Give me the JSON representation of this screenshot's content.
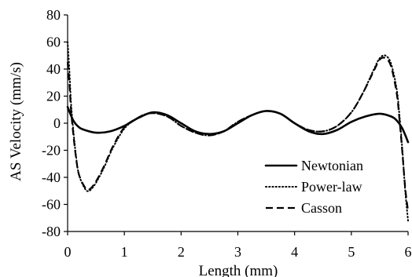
{
  "chart_data": {
    "type": "line",
    "xlabel": "Length (mm)",
    "ylabel": "AS Velocity (mm/s)",
    "xlim": [
      0,
      6
    ],
    "ylim": [
      -80,
      80
    ],
    "x_ticks": [
      0,
      1,
      2,
      3,
      4,
      5,
      6
    ],
    "y_ticks": [
      80,
      60,
      40,
      20,
      0,
      -20,
      -40,
      -60,
      -80
    ],
    "x_tick_labels": [
      "0",
      "1",
      "2",
      "3",
      "4",
      "5",
      "6"
    ],
    "y_tick_labels": [
      "80",
      "60",
      "40",
      "20",
      "0",
      "-20",
      "-40",
      "-60",
      "-80"
    ],
    "grid": false,
    "legend_position": "bottom-right",
    "series": [
      {
        "name": "Newtonian",
        "style": "solid",
        "x": [
          0,
          0.1,
          0.2,
          0.3,
          0.5,
          0.75,
          1.0,
          1.25,
          1.5,
          1.75,
          2.0,
          2.25,
          2.5,
          2.75,
          3.0,
          3.25,
          3.5,
          3.75,
          4.0,
          4.25,
          4.5,
          4.75,
          5.0,
          5.25,
          5.5,
          5.7,
          5.8,
          5.9,
          6.0
        ],
        "y": [
          12,
          2,
          -3,
          -5,
          -7,
          -6,
          -2,
          4,
          8,
          6,
          0,
          -6,
          -8,
          -6,
          0,
          6,
          9,
          7,
          0,
          -6,
          -8,
          -5,
          1,
          5,
          7,
          5,
          2,
          -4,
          -14
        ]
      },
      {
        "name": "Power-law",
        "style": "dotted",
        "x": [
          0,
          0.03,
          0.06,
          0.1,
          0.15,
          0.2,
          0.3,
          0.38,
          0.5,
          0.65,
          0.8,
          1.0,
          1.2,
          1.4,
          1.6,
          1.8,
          2.0,
          2.25,
          2.5,
          2.75,
          3.0,
          3.25,
          3.5,
          3.75,
          4.0,
          4.25,
          4.5,
          4.75,
          5.0,
          5.2,
          5.4,
          5.5,
          5.6,
          5.7,
          5.8,
          5.85,
          5.9,
          5.95,
          6.0
        ],
        "y": [
          60,
          40,
          15,
          -5,
          -25,
          -38,
          -48,
          -50,
          -44,
          -32,
          -18,
          -4,
          3,
          7,
          7,
          4,
          -2,
          -7,
          -9,
          -6,
          1,
          6,
          9,
          7,
          0,
          -5,
          -6,
          -2,
          8,
          22,
          40,
          48,
          50,
          44,
          25,
          5,
          -20,
          -50,
          -72
        ]
      },
      {
        "name": "Casson",
        "style": "dashed",
        "x": [
          0,
          0.03,
          0.06,
          0.1,
          0.15,
          0.2,
          0.3,
          0.38,
          0.5,
          0.65,
          0.8,
          1.0,
          1.2,
          1.4,
          1.6,
          1.8,
          2.0,
          2.25,
          2.5,
          2.75,
          3.0,
          3.25,
          3.5,
          3.75,
          4.0,
          4.25,
          4.5,
          4.75,
          5.0,
          5.2,
          5.4,
          5.5,
          5.6,
          5.7,
          5.8,
          5.85,
          5.9,
          5.95,
          6.0
        ],
        "y": [
          45,
          30,
          10,
          -8,
          -26,
          -38,
          -47,
          -49,
          -43,
          -31,
          -17,
          -3,
          3,
          7,
          7,
          4,
          -2,
          -7,
          -9,
          -6,
          1,
          6,
          9,
          7,
          0,
          -5,
          -6,
          -2,
          8,
          22,
          39,
          47,
          48,
          42,
          22,
          2,
          -22,
          -48,
          -65
        ]
      }
    ]
  }
}
